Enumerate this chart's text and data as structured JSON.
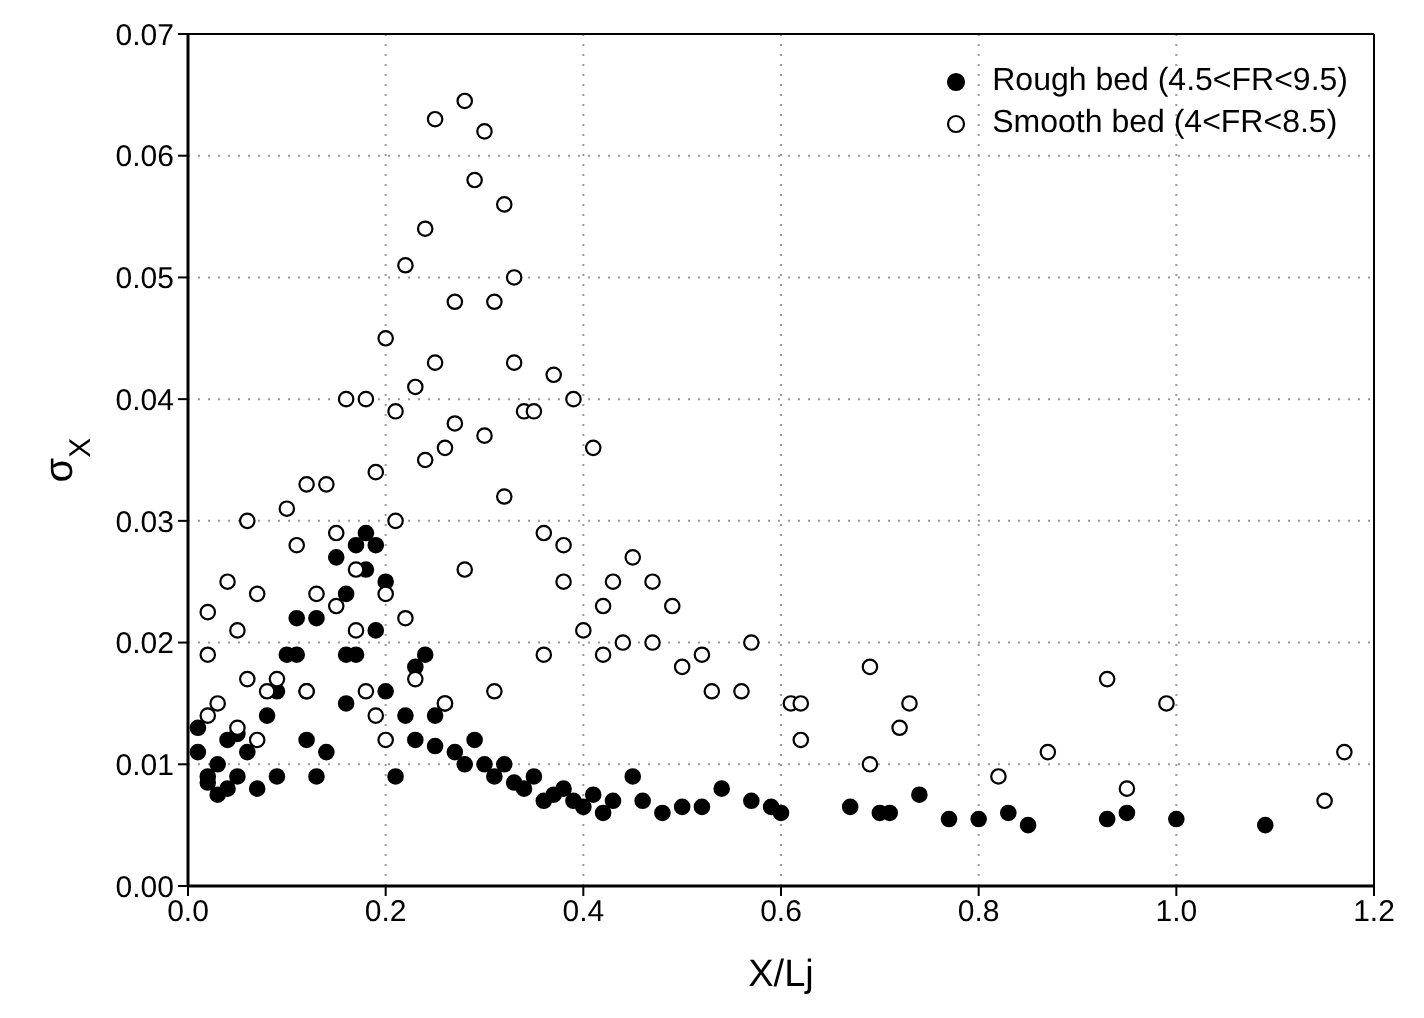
{
  "chart_data": {
    "type": "scatter",
    "xlabel": "X/Lj",
    "ylabel": "σ$_{X}$",
    "xlim": [
      0,
      1.2
    ],
    "xticks": [
      {
        "value": 0,
        "label": "0.0"
      },
      {
        "value": 0.2,
        "label": "0.2"
      },
      {
        "value": 0.4,
        "label": "0.4"
      },
      {
        "value": 0.6,
        "label": "0.6"
      },
      {
        "value": 0.8,
        "label": "0.8"
      },
      {
        "value": 1,
        "label": "1.0"
      },
      {
        "value": 1.2,
        "label": "1.2"
      }
    ],
    "ylim": [
      0,
      0.07
    ],
    "yticks": [
      {
        "value": 0,
        "label": "0.00"
      },
      {
        "value": 0.01,
        "label": "0.01"
      },
      {
        "value": 0.02,
        "label": "0.02"
      },
      {
        "value": 0.03,
        "label": "0.03"
      },
      {
        "value": 0.04,
        "label": "0.04"
      },
      {
        "value": 0.05,
        "label": "0.05"
      },
      {
        "value": 0.06,
        "label": "0.06"
      },
      {
        "value": 0.07,
        "label": "0.07"
      }
    ],
    "grid": true,
    "legend": "top right",
    "marker": "circle",
    "series": [
      {
        "name": "Rough bed (4.5<FR<9.5)",
        "color": "#000000",
        "x": [
          0.01,
          0.01,
          0.02,
          0.02,
          0.03,
          0.03,
          0.04,
          0.04,
          0.05,
          0.05,
          0.06,
          0.07,
          0.08,
          0.09,
          0.09,
          0.1,
          0.11,
          0.11,
          0.12,
          0.12,
          0.13,
          0.13,
          0.14,
          0.15,
          0.16,
          0.16,
          0.16,
          0.17,
          0.17,
          0.18,
          0.18,
          0.19,
          0.19,
          0.2,
          0.2,
          0.21,
          0.22,
          0.23,
          0.23,
          0.24,
          0.25,
          0.25,
          0.26,
          0.27,
          0.28,
          0.29,
          0.3,
          0.31,
          0.32,
          0.33,
          0.34,
          0.35,
          0.36,
          0.37,
          0.38,
          0.39,
          0.4,
          0.41,
          0.42,
          0.43,
          0.45,
          0.46,
          0.48,
          0.5,
          0.52,
          0.54,
          0.57,
          0.59,
          0.6,
          0.67,
          0.7,
          0.71,
          0.74,
          0.77,
          0.8,
          0.83,
          0.85,
          0.93,
          0.95,
          1.0,
          1.09
        ],
        "values": [
          0.013,
          0.011,
          0.009,
          0.0085,
          0.0075,
          0.01,
          0.008,
          0.012,
          0.009,
          0.0125,
          0.011,
          0.008,
          0.014,
          0.016,
          0.009,
          0.019,
          0.019,
          0.022,
          0.016,
          0.012,
          0.022,
          0.009,
          0.011,
          0.027,
          0.024,
          0.019,
          0.015,
          0.028,
          0.019,
          0.029,
          0.026,
          0.028,
          0.021,
          0.025,
          0.016,
          0.009,
          0.014,
          0.018,
          0.012,
          0.019,
          0.0115,
          0.014,
          0.015,
          0.011,
          0.01,
          0.012,
          0.01,
          0.009,
          0.01,
          0.0085,
          0.008,
          0.009,
          0.007,
          0.0075,
          0.008,
          0.007,
          0.0065,
          0.0075,
          0.006,
          0.007,
          0.009,
          0.007,
          0.006,
          0.0065,
          0.0065,
          0.008,
          0.007,
          0.0065,
          0.006,
          0.0065,
          0.006,
          0.006,
          0.0075,
          0.0055,
          0.0055,
          0.006,
          0.005,
          0.0055,
          0.006,
          0.0055,
          0.005
        ]
      },
      {
        "name": "Smooth bed (4<FR<8.5)",
        "color": "#ffffff",
        "x": [
          0.02,
          0.02,
          0.03,
          0.02,
          0.04,
          0.05,
          0.06,
          0.06,
          0.07,
          0.05,
          0.07,
          0.08,
          0.09,
          0.1,
          0.11,
          0.12,
          0.13,
          0.14,
          0.15,
          0.15,
          0.16,
          0.17,
          0.17,
          0.18,
          0.19,
          0.2,
          0.2,
          0.21,
          0.21,
          0.22,
          0.22,
          0.23,
          0.24,
          0.24,
          0.25,
          0.25,
          0.26,
          0.27,
          0.27,
          0.28,
          0.28,
          0.29,
          0.3,
          0.3,
          0.31,
          0.32,
          0.32,
          0.33,
          0.33,
          0.34,
          0.35,
          0.36,
          0.37,
          0.38,
          0.39,
          0.4,
          0.41,
          0.42,
          0.43,
          0.44,
          0.45,
          0.47,
          0.49,
          0.5,
          0.52,
          0.53,
          0.56,
          0.57,
          0.61,
          0.62,
          0.62,
          0.69,
          0.69,
          0.72,
          0.73,
          0.82,
          0.87,
          0.93,
          0.95,
          0.99,
          1.15,
          1.17,
          0.19,
          0.23,
          0.26,
          0.18,
          0.12,
          0.2,
          0.31,
          0.36,
          0.38,
          0.42,
          0.47
        ],
        "values": [
          0.019,
          0.0225,
          0.015,
          0.014,
          0.025,
          0.021,
          0.03,
          0.017,
          0.024,
          0.013,
          0.012,
          0.016,
          0.017,
          0.031,
          0.028,
          0.033,
          0.024,
          0.033,
          0.029,
          0.023,
          0.04,
          0.026,
          0.021,
          0.04,
          0.034,
          0.045,
          0.024,
          0.03,
          0.039,
          0.051,
          0.022,
          0.041,
          0.054,
          0.035,
          0.043,
          0.063,
          0.036,
          0.048,
          0.038,
          0.0645,
          0.026,
          0.058,
          0.037,
          0.062,
          0.048,
          0.056,
          0.032,
          0.05,
          0.043,
          0.039,
          0.039,
          0.029,
          0.042,
          0.028,
          0.04,
          0.021,
          0.036,
          0.023,
          0.025,
          0.02,
          0.027,
          0.02,
          0.023,
          0.018,
          0.019,
          0.016,
          0.016,
          0.02,
          0.015,
          0.015,
          0.012,
          0.018,
          0.01,
          0.013,
          0.015,
          0.009,
          0.011,
          0.017,
          0.008,
          0.015,
          0.007,
          0.011,
          0.014,
          0.017,
          0.015,
          0.016,
          0.016,
          0.012,
          0.016,
          0.019,
          0.025,
          0.019,
          0.025
        ]
      }
    ]
  }
}
